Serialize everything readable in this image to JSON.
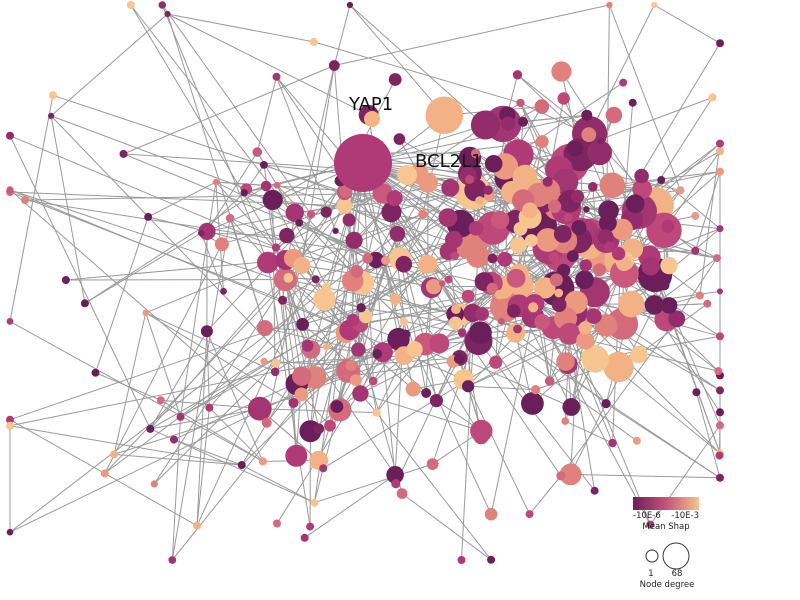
{
  "node_labels": [
    "YAP1",
    "BCL2L1"
  ],
  "legend": {
    "color": {
      "min_label": "-10E-6",
      "max_label": "-10E-3",
      "title": "Mean Shap"
    },
    "size": {
      "min_label": "1",
      "max_label": "68",
      "title": "Node degree"
    }
  }
}
